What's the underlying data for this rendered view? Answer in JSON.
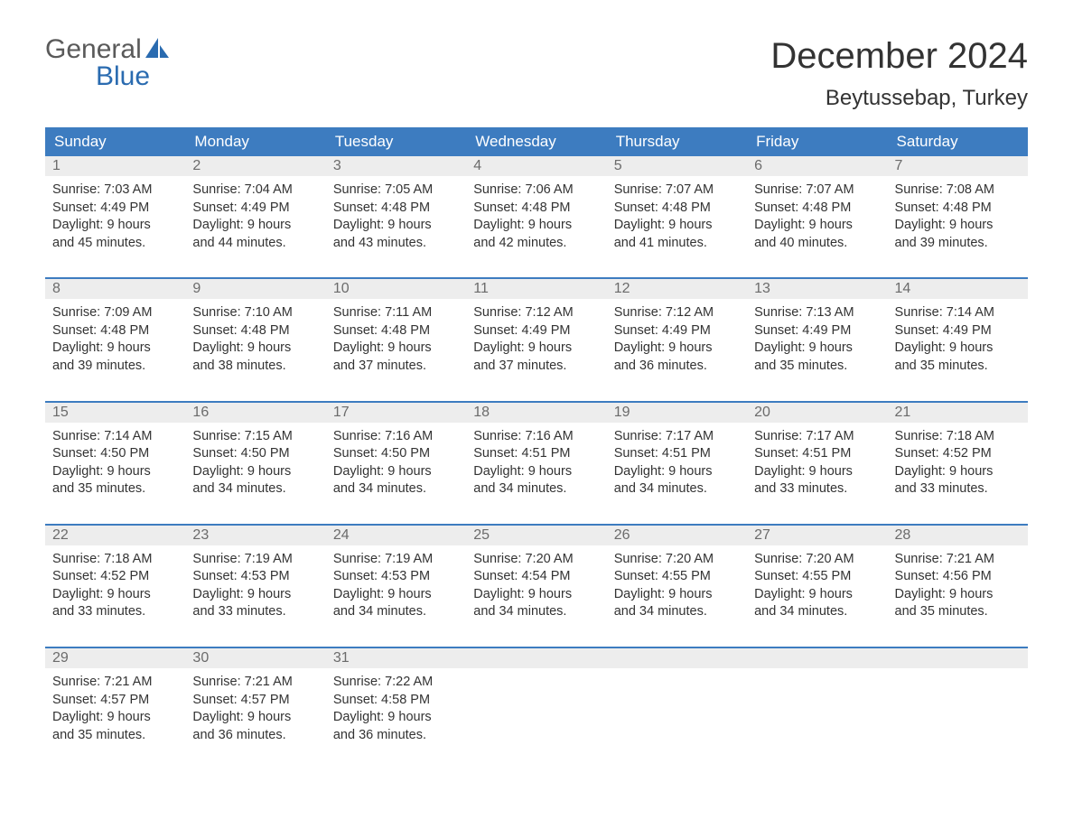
{
  "logo": {
    "word1": "General",
    "word2": "Blue"
  },
  "title": "December 2024",
  "location": "Beytussebap, Turkey",
  "colors": {
    "header_bg": "#3d7cc0",
    "header_text": "#ffffff",
    "daynum_bg": "#ededed",
    "daynum_text": "#6b6b6b",
    "body_text": "#333333",
    "logo_gray": "#5a5a5a",
    "logo_blue": "#2a6bb0",
    "week_border": "#3d7cc0"
  },
  "dow": [
    "Sunday",
    "Monday",
    "Tuesday",
    "Wednesday",
    "Thursday",
    "Friday",
    "Saturday"
  ],
  "weeks": [
    [
      {
        "n": "1",
        "sunrise": "Sunrise: 7:03 AM",
        "sunset": "Sunset: 4:49 PM",
        "dl1": "Daylight: 9 hours",
        "dl2": "and 45 minutes."
      },
      {
        "n": "2",
        "sunrise": "Sunrise: 7:04 AM",
        "sunset": "Sunset: 4:49 PM",
        "dl1": "Daylight: 9 hours",
        "dl2": "and 44 minutes."
      },
      {
        "n": "3",
        "sunrise": "Sunrise: 7:05 AM",
        "sunset": "Sunset: 4:48 PM",
        "dl1": "Daylight: 9 hours",
        "dl2": "and 43 minutes."
      },
      {
        "n": "4",
        "sunrise": "Sunrise: 7:06 AM",
        "sunset": "Sunset: 4:48 PM",
        "dl1": "Daylight: 9 hours",
        "dl2": "and 42 minutes."
      },
      {
        "n": "5",
        "sunrise": "Sunrise: 7:07 AM",
        "sunset": "Sunset: 4:48 PM",
        "dl1": "Daylight: 9 hours",
        "dl2": "and 41 minutes."
      },
      {
        "n": "6",
        "sunrise": "Sunrise: 7:07 AM",
        "sunset": "Sunset: 4:48 PM",
        "dl1": "Daylight: 9 hours",
        "dl2": "and 40 minutes."
      },
      {
        "n": "7",
        "sunrise": "Sunrise: 7:08 AM",
        "sunset": "Sunset: 4:48 PM",
        "dl1": "Daylight: 9 hours",
        "dl2": "and 39 minutes."
      }
    ],
    [
      {
        "n": "8",
        "sunrise": "Sunrise: 7:09 AM",
        "sunset": "Sunset: 4:48 PM",
        "dl1": "Daylight: 9 hours",
        "dl2": "and 39 minutes."
      },
      {
        "n": "9",
        "sunrise": "Sunrise: 7:10 AM",
        "sunset": "Sunset: 4:48 PM",
        "dl1": "Daylight: 9 hours",
        "dl2": "and 38 minutes."
      },
      {
        "n": "10",
        "sunrise": "Sunrise: 7:11 AM",
        "sunset": "Sunset: 4:48 PM",
        "dl1": "Daylight: 9 hours",
        "dl2": "and 37 minutes."
      },
      {
        "n": "11",
        "sunrise": "Sunrise: 7:12 AM",
        "sunset": "Sunset: 4:49 PM",
        "dl1": "Daylight: 9 hours",
        "dl2": "and 37 minutes."
      },
      {
        "n": "12",
        "sunrise": "Sunrise: 7:12 AM",
        "sunset": "Sunset: 4:49 PM",
        "dl1": "Daylight: 9 hours",
        "dl2": "and 36 minutes."
      },
      {
        "n": "13",
        "sunrise": "Sunrise: 7:13 AM",
        "sunset": "Sunset: 4:49 PM",
        "dl1": "Daylight: 9 hours",
        "dl2": "and 35 minutes."
      },
      {
        "n": "14",
        "sunrise": "Sunrise: 7:14 AM",
        "sunset": "Sunset: 4:49 PM",
        "dl1": "Daylight: 9 hours",
        "dl2": "and 35 minutes."
      }
    ],
    [
      {
        "n": "15",
        "sunrise": "Sunrise: 7:14 AM",
        "sunset": "Sunset: 4:50 PM",
        "dl1": "Daylight: 9 hours",
        "dl2": "and 35 minutes."
      },
      {
        "n": "16",
        "sunrise": "Sunrise: 7:15 AM",
        "sunset": "Sunset: 4:50 PM",
        "dl1": "Daylight: 9 hours",
        "dl2": "and 34 minutes."
      },
      {
        "n": "17",
        "sunrise": "Sunrise: 7:16 AM",
        "sunset": "Sunset: 4:50 PM",
        "dl1": "Daylight: 9 hours",
        "dl2": "and 34 minutes."
      },
      {
        "n": "18",
        "sunrise": "Sunrise: 7:16 AM",
        "sunset": "Sunset: 4:51 PM",
        "dl1": "Daylight: 9 hours",
        "dl2": "and 34 minutes."
      },
      {
        "n": "19",
        "sunrise": "Sunrise: 7:17 AM",
        "sunset": "Sunset: 4:51 PM",
        "dl1": "Daylight: 9 hours",
        "dl2": "and 34 minutes."
      },
      {
        "n": "20",
        "sunrise": "Sunrise: 7:17 AM",
        "sunset": "Sunset: 4:51 PM",
        "dl1": "Daylight: 9 hours",
        "dl2": "and 33 minutes."
      },
      {
        "n": "21",
        "sunrise": "Sunrise: 7:18 AM",
        "sunset": "Sunset: 4:52 PM",
        "dl1": "Daylight: 9 hours",
        "dl2": "and 33 minutes."
      }
    ],
    [
      {
        "n": "22",
        "sunrise": "Sunrise: 7:18 AM",
        "sunset": "Sunset: 4:52 PM",
        "dl1": "Daylight: 9 hours",
        "dl2": "and 33 minutes."
      },
      {
        "n": "23",
        "sunrise": "Sunrise: 7:19 AM",
        "sunset": "Sunset: 4:53 PM",
        "dl1": "Daylight: 9 hours",
        "dl2": "and 33 minutes."
      },
      {
        "n": "24",
        "sunrise": "Sunrise: 7:19 AM",
        "sunset": "Sunset: 4:53 PM",
        "dl1": "Daylight: 9 hours",
        "dl2": "and 34 minutes."
      },
      {
        "n": "25",
        "sunrise": "Sunrise: 7:20 AM",
        "sunset": "Sunset: 4:54 PM",
        "dl1": "Daylight: 9 hours",
        "dl2": "and 34 minutes."
      },
      {
        "n": "26",
        "sunrise": "Sunrise: 7:20 AM",
        "sunset": "Sunset: 4:55 PM",
        "dl1": "Daylight: 9 hours",
        "dl2": "and 34 minutes."
      },
      {
        "n": "27",
        "sunrise": "Sunrise: 7:20 AM",
        "sunset": "Sunset: 4:55 PM",
        "dl1": "Daylight: 9 hours",
        "dl2": "and 34 minutes."
      },
      {
        "n": "28",
        "sunrise": "Sunrise: 7:21 AM",
        "sunset": "Sunset: 4:56 PM",
        "dl1": "Daylight: 9 hours",
        "dl2": "and 35 minutes."
      }
    ],
    [
      {
        "n": "29",
        "sunrise": "Sunrise: 7:21 AM",
        "sunset": "Sunset: 4:57 PM",
        "dl1": "Daylight: 9 hours",
        "dl2": "and 35 minutes."
      },
      {
        "n": "30",
        "sunrise": "Sunrise: 7:21 AM",
        "sunset": "Sunset: 4:57 PM",
        "dl1": "Daylight: 9 hours",
        "dl2": "and 36 minutes."
      },
      {
        "n": "31",
        "sunrise": "Sunrise: 7:22 AM",
        "sunset": "Sunset: 4:58 PM",
        "dl1": "Daylight: 9 hours",
        "dl2": "and 36 minutes."
      },
      {
        "empty": true
      },
      {
        "empty": true
      },
      {
        "empty": true
      },
      {
        "empty": true
      }
    ]
  ]
}
